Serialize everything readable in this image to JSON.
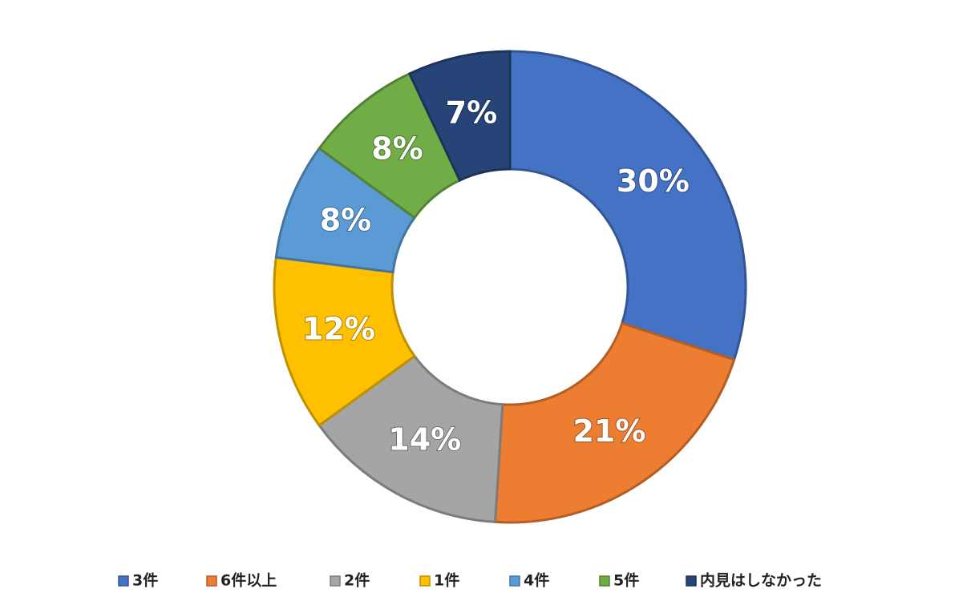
{
  "chart_data": {
    "type": "donut",
    "categories": [
      "3件",
      "6件以上",
      "2件",
      "1件",
      "4件",
      "5件",
      "内見はしなかった"
    ],
    "values": [
      30,
      21,
      14,
      12,
      8,
      8,
      7
    ],
    "value_labels": [
      "30%",
      "21%",
      "14%",
      "12%",
      "8%",
      "8%",
      "7%"
    ],
    "colors": [
      "#4472c4",
      "#ed7d31",
      "#a5a5a5",
      "#ffc000",
      "#5b9bd5",
      "#70ad47",
      "#264478"
    ],
    "legend": "bottom"
  }
}
